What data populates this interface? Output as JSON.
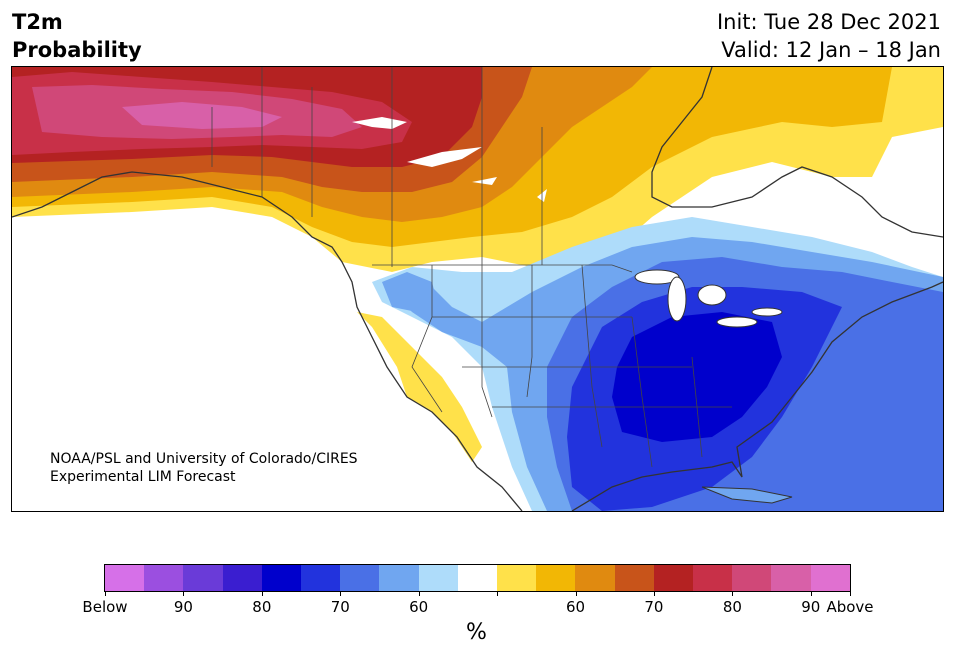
{
  "title": {
    "variable": "T2m",
    "subtitle": "Probability",
    "init": "Init: Tue 28 Dec 2021",
    "valid": "Valid: 12 Jan – 18 Jan"
  },
  "credit": {
    "line1": "NOAA/PSL and University of Colorado/CIRES",
    "line2": "Experimental LIM Forecast"
  },
  "colorbar": {
    "colors": [
      "#d670e8",
      "#9b4fe0",
      "#6a3bd8",
      "#3a1ed0",
      "#0000cc",
      "#2233dd",
      "#4a70e6",
      "#70a6f0",
      "#aedcfa",
      "#ffffff",
      "#ffe14a",
      "#f2b705",
      "#e08a10",
      "#c8541a",
      "#b42222",
      "#c83048",
      "#d04878",
      "#d860a8",
      "#e070d0"
    ],
    "tick_labels": [
      "Below",
      "90",
      "80",
      "70",
      "60",
      "",
      "60",
      "70",
      "80",
      "90",
      "Above"
    ],
    "unit": "%"
  },
  "map": {
    "region": "North America",
    "above_normal_color": "#c8305a",
    "below_normal_color": "#0000cc"
  }
}
